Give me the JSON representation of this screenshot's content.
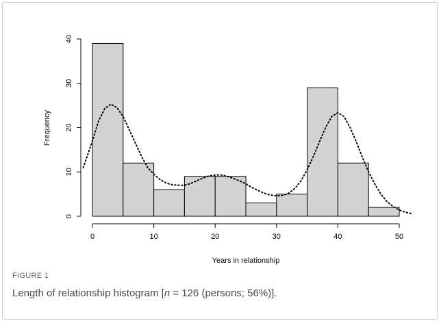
{
  "figure": {
    "label": "FIGURE 1",
    "caption_pre": "Length of relationship histogram [",
    "caption_n": "n",
    "caption_post": " = 126 (persons; 56%)]."
  },
  "chart_data": {
    "type": "bar",
    "subtype": "histogram",
    "bin_edges": [
      0,
      5,
      10,
      15,
      20,
      25,
      30,
      35,
      40,
      45,
      50
    ],
    "values": [
      39,
      12,
      6,
      9,
      9,
      3,
      5,
      29,
      12,
      2
    ],
    "xlabel": "Years in relationship",
    "ylabel": "Frequency",
    "xlim": [
      0,
      50
    ],
    "ylim": [
      0,
      40
    ],
    "x_ticks": [
      0,
      10,
      20,
      30,
      40,
      50
    ],
    "y_ticks": [
      0,
      10,
      20,
      30,
      40
    ],
    "grid": false,
    "bar_color": "#d3d3d3",
    "bar_edge_color": "#000000",
    "density_curve": {
      "style": "dotted",
      "color": "#000000",
      "points": [
        [
          -1.5,
          11
        ],
        [
          0,
          17
        ],
        [
          1,
          21.5
        ],
        [
          2,
          24.3
        ],
        [
          3,
          25.3
        ],
        [
          4,
          24.5
        ],
        [
          5,
          22.5
        ],
        [
          6,
          19.5
        ],
        [
          7,
          16.5
        ],
        [
          8,
          13.5
        ],
        [
          9,
          11
        ],
        [
          10,
          9.5
        ],
        [
          11,
          8.3
        ],
        [
          12,
          7.5
        ],
        [
          13,
          7.1
        ],
        [
          14,
          7
        ],
        [
          15,
          7
        ],
        [
          16,
          7.4
        ],
        [
          17,
          8
        ],
        [
          18,
          8.6
        ],
        [
          19,
          9.1
        ],
        [
          20,
          9.3
        ],
        [
          21,
          9.3
        ],
        [
          22,
          9
        ],
        [
          23,
          8.5
        ],
        [
          24,
          8
        ],
        [
          25,
          7.3
        ],
        [
          26,
          6.5
        ],
        [
          27,
          5.8
        ],
        [
          28,
          5.2
        ],
        [
          29,
          4.8
        ],
        [
          30,
          4.6
        ],
        [
          31,
          4.7
        ],
        [
          32,
          5.2
        ],
        [
          33,
          6.3
        ],
        [
          34,
          8
        ],
        [
          35,
          10.5
        ],
        [
          36,
          13.5
        ],
        [
          37,
          16.8
        ],
        [
          38,
          20
        ],
        [
          39,
          22.5
        ],
        [
          40,
          23.4
        ],
        [
          41,
          22.5
        ],
        [
          42,
          20
        ],
        [
          43,
          16.8
        ],
        [
          44,
          13.3
        ],
        [
          45,
          10
        ],
        [
          46,
          7.3
        ],
        [
          47,
          5
        ],
        [
          48,
          3.3
        ],
        [
          49,
          2.2
        ],
        [
          50,
          1.4
        ],
        [
          51,
          0.9
        ],
        [
          52,
          0.6
        ]
      ]
    }
  }
}
